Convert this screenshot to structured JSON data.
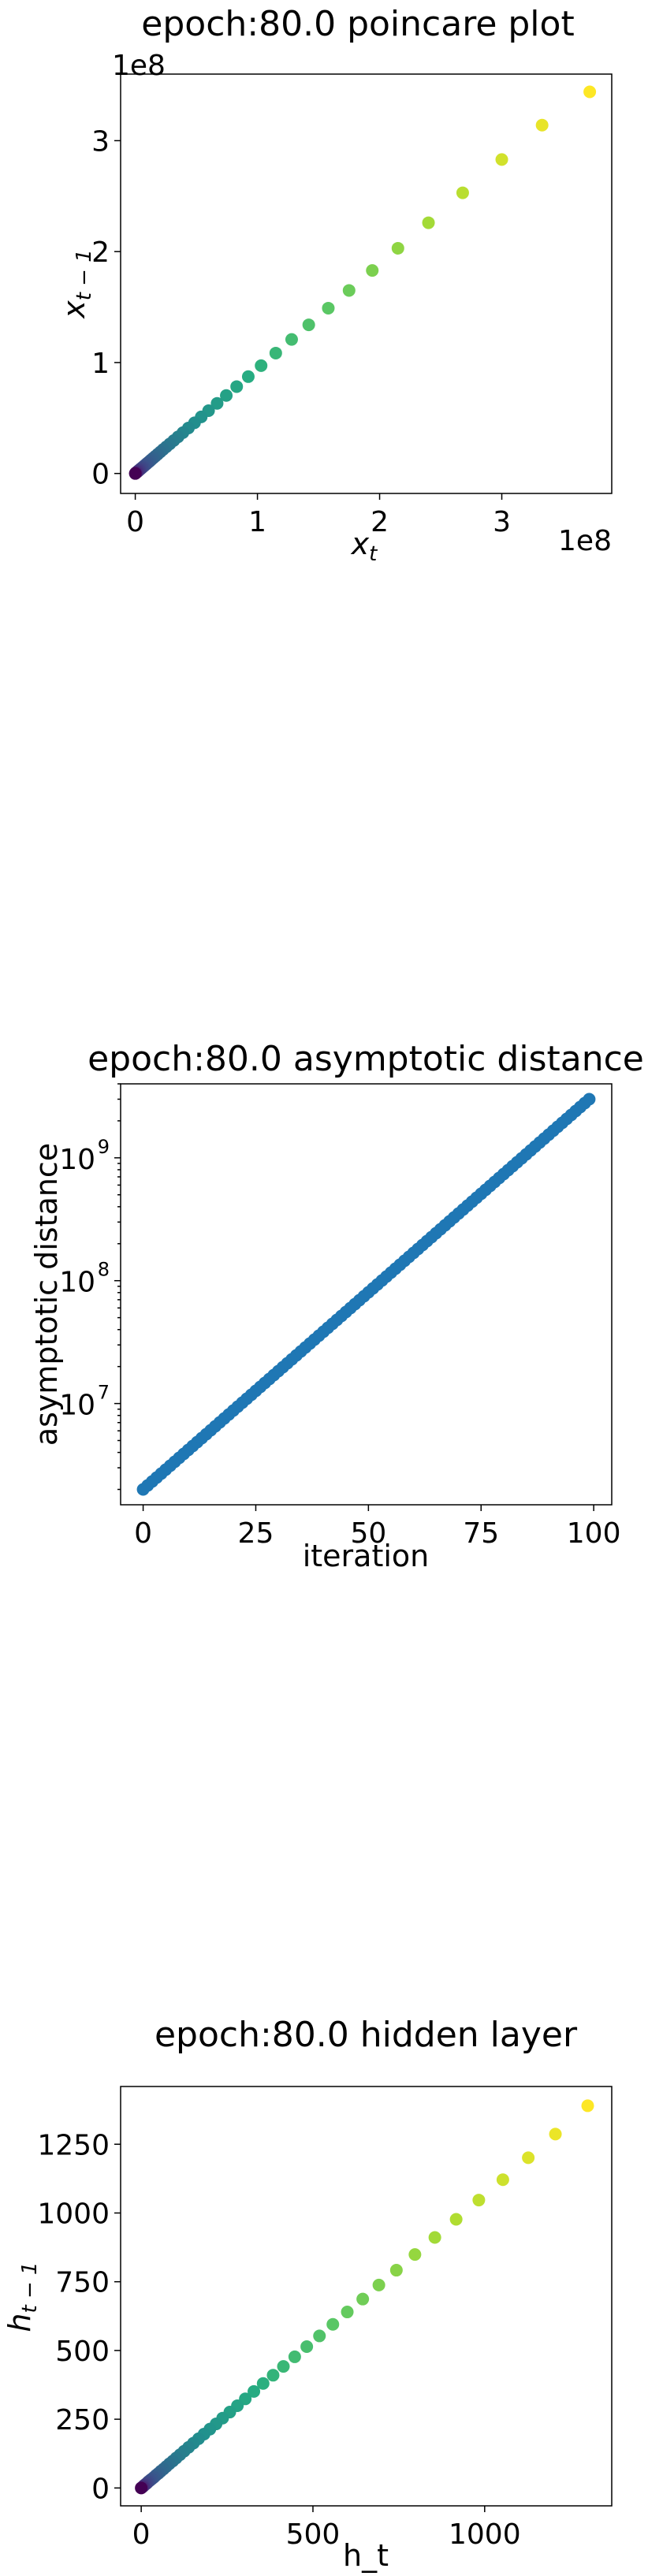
{
  "chart_data": [
    {
      "type": "scatter",
      "title": "epoch:80.0 poincare plot",
      "xlabel": "x_t",
      "ylabel": "x_{t-1}",
      "x_offset_label": "1e8",
      "y_offset_label": "1e8",
      "xlim": [
        -0.12,
        3.9
      ],
      "ylim": [
        -0.18,
        3.6
      ],
      "xticks": [
        0,
        1,
        2,
        3
      ],
      "yticks": [
        0,
        1,
        2,
        3
      ],
      "colormap": "viridis",
      "grid": false,
      "x": [
        0.0,
        0.002,
        0.004,
        0.006,
        0.008,
        0.011,
        0.014,
        0.017,
        0.021,
        0.025,
        0.03,
        0.035,
        0.041,
        0.048,
        0.055,
        0.063,
        0.072,
        0.082,
        0.093,
        0.105,
        0.118,
        0.132,
        0.148,
        0.165,
        0.184,
        0.205,
        0.228,
        0.254,
        0.283,
        0.315,
        0.35,
        0.39,
        0.435,
        0.485,
        0.54,
        0.6,
        0.67,
        0.745,
        0.83,
        0.925,
        1.03,
        1.15,
        1.28,
        1.42,
        1.58,
        1.75,
        1.94,
        2.15,
        2.4,
        2.68,
        3.0,
        3.33,
        3.72
      ],
      "y": [
        0.0,
        0.002,
        0.004,
        0.006,
        0.008,
        0.011,
        0.013,
        0.016,
        0.02,
        0.024,
        0.028,
        0.033,
        0.039,
        0.045,
        0.052,
        0.059,
        0.068,
        0.077,
        0.088,
        0.099,
        0.111,
        0.125,
        0.14,
        0.156,
        0.174,
        0.194,
        0.216,
        0.24,
        0.267,
        0.297,
        0.33,
        0.368,
        0.41,
        0.457,
        0.51,
        0.566,
        0.632,
        0.703,
        0.783,
        0.873,
        0.972,
        1.085,
        1.208,
        1.34,
        1.49,
        1.65,
        1.83,
        2.03,
        2.26,
        2.53,
        2.83,
        3.14,
        3.44
      ]
    },
    {
      "type": "scatter",
      "title": "epoch:80.0 asymptotic distance",
      "xlabel": "iteration",
      "ylabel": "asymptotic distance",
      "xlim": [
        -5,
        104
      ],
      "ylim": [
        1500000,
        4000000000
      ],
      "yscale": "log",
      "xticks": [
        0,
        25,
        50,
        75,
        100
      ],
      "yticks": [
        10000000,
        100000000,
        1000000000
      ],
      "ytick_labels": [
        "10",
        "10",
        "10"
      ],
      "ytick_exponents": [
        "7",
        "8",
        "9"
      ],
      "color": "#1f77b4",
      "grid": false,
      "start_value": 2000000,
      "end_value": 3000000000,
      "n_points": 100
    },
    {
      "type": "scatter",
      "title": "epoch:80.0 hidden layer",
      "xlabel": "h_t",
      "ylabel": "h_{t-1}",
      "xlim": [
        -60,
        1370
      ],
      "ylim": [
        -65,
        1460
      ],
      "xticks": [
        0,
        500,
        1000
      ],
      "yticks": [
        0,
        250,
        500,
        750,
        1000,
        1250
      ],
      "colormap": "viridis",
      "grid": false,
      "x": [
        0,
        3,
        6,
        9,
        13,
        17,
        21,
        26,
        31,
        37,
        43,
        50,
        57,
        65,
        73,
        82,
        92,
        102,
        113,
        125,
        138,
        152,
        167,
        183,
        200,
        218,
        237,
        258,
        280,
        303,
        328,
        355,
        384,
        414,
        447,
        482,
        519,
        558,
        600,
        645,
        692,
        743,
        797,
        855,
        917,
        983,
        1053,
        1127,
        1206,
        1300
      ],
      "y": [
        0,
        3,
        6,
        10,
        14,
        18,
        23,
        28,
        33,
        39,
        46,
        53,
        61,
        69,
        78,
        88,
        98,
        109,
        121,
        134,
        148,
        163,
        179,
        196,
        214,
        233,
        254,
        276,
        299,
        324,
        351,
        380,
        410,
        442,
        477,
        514,
        553,
        595,
        640,
        687,
        738,
        792,
        849,
        911,
        977,
        1047,
        1121,
        1201,
        1287,
        1390
      ]
    }
  ]
}
